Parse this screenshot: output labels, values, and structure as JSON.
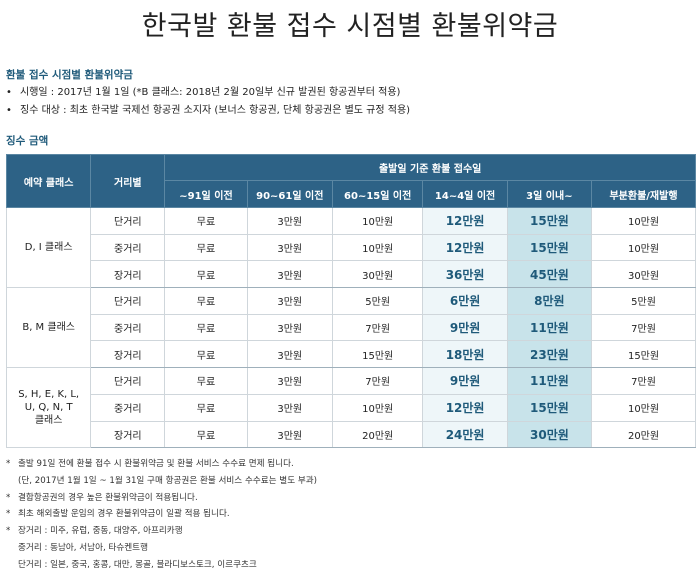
{
  "title": "한국발 환불 접수 시점별 환불위약금",
  "section1_heading": "환불 접수 시점별 환불위약금",
  "info_bullet": "•",
  "info": [
    "시행일 : 2017년 1월 1일 (*B 클래스: 2018년 2월 20일부 신규 발권된 항공권부터 적용)",
    "징수 대상 : 최초 한국발 국제선 항공권 소지자 (보너스 항공권, 단체 항공권은 별도 규정 적용)"
  ],
  "section2_heading": "징수 금액",
  "table": {
    "col_class": "예약 클래스",
    "col_distance": "거리별",
    "group_header": "출발일 기준 환불 접수일",
    "periods": [
      "~91일 이전",
      "90~61일 이전",
      "60~15일 이전",
      "14~4일 이전",
      "3일 이내~",
      "부분환불/재발행"
    ],
    "groups": [
      {
        "class": "D, I 클래스",
        "rows": [
          {
            "distance": "단거리",
            "fees": [
              "무료",
              "3만원",
              "10만원",
              "12만원",
              "15만원",
              "10만원"
            ]
          },
          {
            "distance": "중거리",
            "fees": [
              "무료",
              "3만원",
              "10만원",
              "12만원",
              "15만원",
              "10만원"
            ]
          },
          {
            "distance": "장거리",
            "fees": [
              "무료",
              "3만원",
              "30만원",
              "36만원",
              "45만원",
              "30만원"
            ]
          }
        ]
      },
      {
        "class": "B, M 클래스",
        "rows": [
          {
            "distance": "단거리",
            "fees": [
              "무료",
              "3만원",
              "5만원",
              "6만원",
              "8만원",
              "5만원"
            ]
          },
          {
            "distance": "중거리",
            "fees": [
              "무료",
              "3만원",
              "7만원",
              "9만원",
              "11만원",
              "7만원"
            ]
          },
          {
            "distance": "장거리",
            "fees": [
              "무료",
              "3만원",
              "15만원",
              "18만원",
              "23만원",
              "15만원"
            ]
          }
        ]
      },
      {
        "class": "S, H, E, K, L,\nU, Q, N, T\n클래스",
        "rows": [
          {
            "distance": "단거리",
            "fees": [
              "무료",
              "3만원",
              "7만원",
              "9만원",
              "11만원",
              "7만원"
            ]
          },
          {
            "distance": "중거리",
            "fees": [
              "무료",
              "3만원",
              "10만원",
              "12만원",
              "15만원",
              "10만원"
            ]
          },
          {
            "distance": "장거리",
            "fees": [
              "무료",
              "3만원",
              "20만원",
              "24만원",
              "30만원",
              "20만원"
            ]
          }
        ]
      }
    ]
  },
  "note_marker": "*",
  "notes": [
    {
      "star": true,
      "text": "출발 91일 전에 환불 접수 시 환불위약금 및 환불 서비스 수수료 면제 됩니다."
    },
    {
      "star": false,
      "text": "(단, 2017년 1월 1일 ~ 1월 31일 구매 항공권은 환불 서비스 수수료는 별도 부과)"
    },
    {
      "star": true,
      "text": "결합항공권의 경우 높은 환불위약금이 적용됩니다."
    },
    {
      "star": true,
      "text": "최초 해외출발 운임의 경우 환불위약금이 일괄 적용 됩니다."
    },
    {
      "star": true,
      "text": "장거리 : 미주, 유럽, 중동, 대양주, 아프리카행"
    },
    {
      "star": false,
      "text": "중거리 : 동남아, 서남아, 타슈켄트행"
    },
    {
      "star": false,
      "text": "단거리 : 일본, 중국, 홍콩, 대만, 몽골, 블라디보스토크, 이르쿠츠크"
    }
  ],
  "colors": {
    "header_bg": "#2d6286",
    "heading_text": "#1f5a7a",
    "highlight_light": "#eef6f9",
    "highlight_dark": "#c8e3ea"
  }
}
